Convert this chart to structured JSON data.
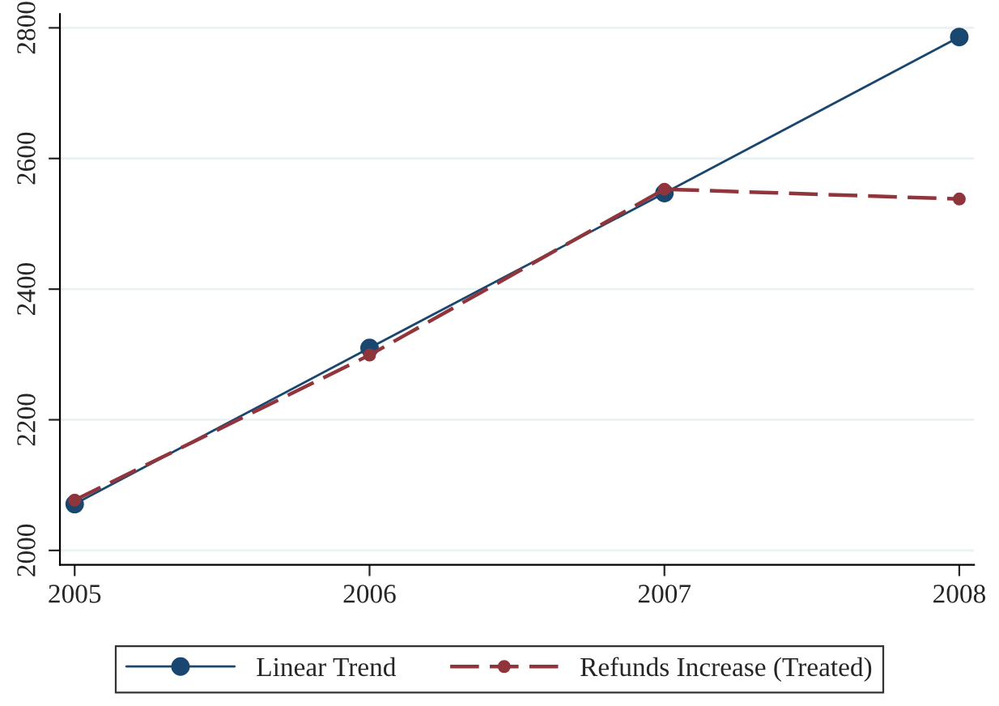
{
  "chart_data": {
    "type": "line",
    "x": [
      2005,
      2006,
      2007,
      2008
    ],
    "series": [
      {
        "name": "Linear Trend",
        "color": "#1a476f",
        "values": [
          2071,
          2310,
          2547,
          2786
        ],
        "line_style": "solid"
      },
      {
        "name": "Refunds Increase (Treated)",
        "color": "#90353b",
        "values": [
          2077,
          2299,
          2553,
          2538
        ],
        "line_style": "dashed"
      }
    ],
    "xlim": [
      2004.95,
      2008.05
    ],
    "xticks": [
      2005,
      2006,
      2007,
      2008
    ],
    "ylim": [
      1978,
      2821
    ],
    "yticks": [
      2000,
      2200,
      2400,
      2600,
      2800
    ],
    "grid": "y",
    "legend": "bottom",
    "marker": "circle"
  }
}
